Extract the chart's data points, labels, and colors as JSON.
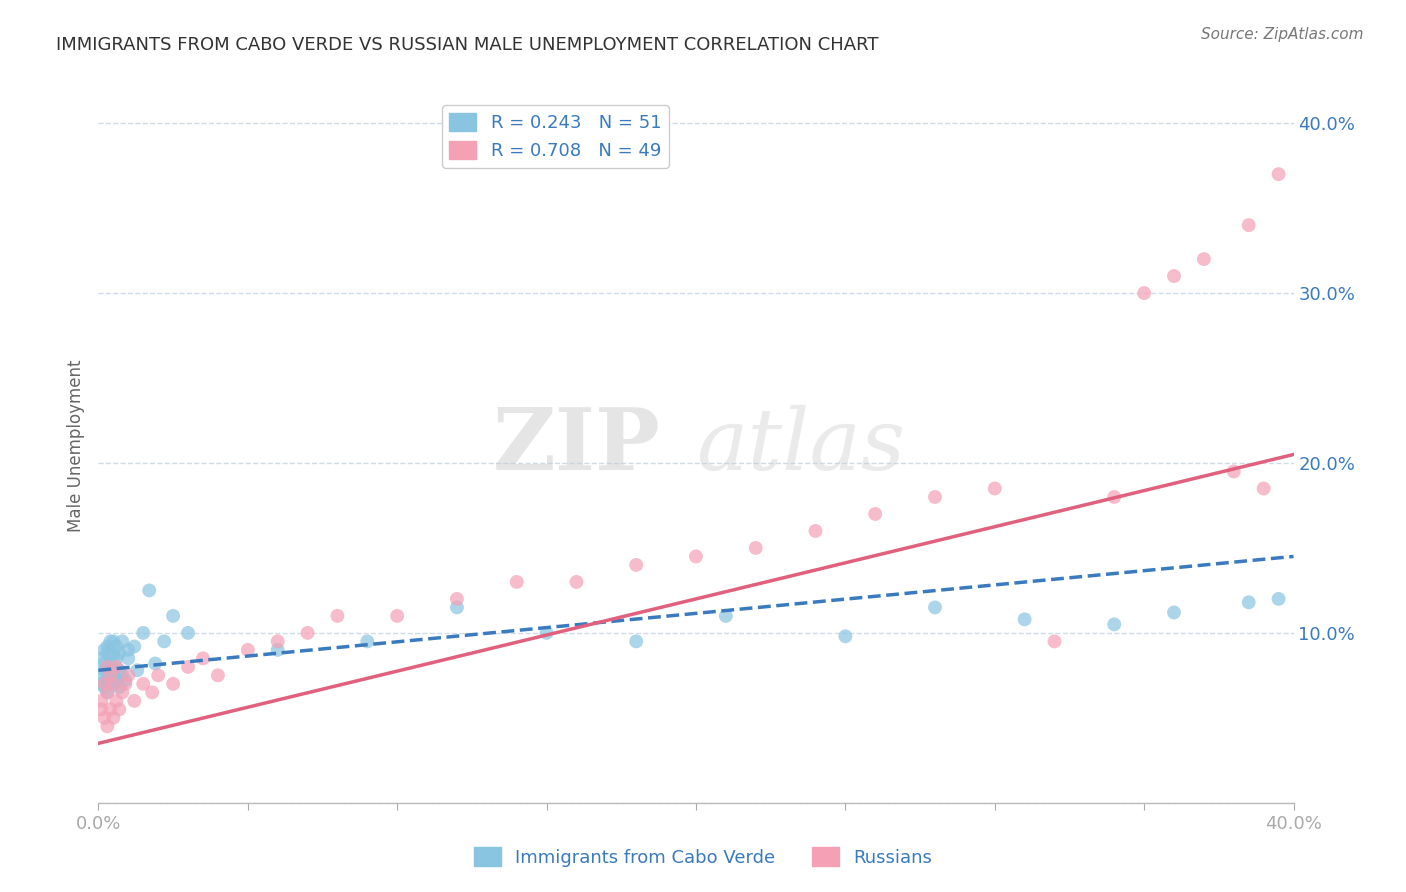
{
  "title": "IMMIGRANTS FROM CABO VERDE VS RUSSIAN MALE UNEMPLOYMENT CORRELATION CHART",
  "source": "Source: ZipAtlas.com",
  "ylabel": "Male Unemployment",
  "xlim": [
    0.0,
    0.4
  ],
  "ylim": [
    0.0,
    0.42
  ],
  "ytick_vals": [
    0.0,
    0.1,
    0.2,
    0.3,
    0.4
  ],
  "xtick_vals": [
    0.0,
    0.05,
    0.1,
    0.15,
    0.2,
    0.25,
    0.3,
    0.35,
    0.4
  ],
  "legend_R1": "R = 0.243",
  "legend_N1": "N = 51",
  "legend_R2": "R = 0.708",
  "legend_N2": "N = 49",
  "color_blue": "#89c4e1",
  "color_pink": "#f4a0b5",
  "color_line_blue": "#3a7abf",
  "color_line_pink": "#e0607e",
  "color_axis_label": "#3a7abf",
  "color_grid": "#c8d8e8",
  "background_color": "#ffffff",
  "watermark_zip": "ZIP",
  "watermark_atlas": "atlas",
  "cabo_verde_x": [
    0.001,
    0.001,
    0.001,
    0.002,
    0.002,
    0.002,
    0.002,
    0.003,
    0.003,
    0.003,
    0.003,
    0.003,
    0.004,
    0.004,
    0.004,
    0.005,
    0.005,
    0.005,
    0.005,
    0.006,
    0.006,
    0.006,
    0.007,
    0.007,
    0.007,
    0.008,
    0.008,
    0.009,
    0.01,
    0.01,
    0.012,
    0.013,
    0.015,
    0.017,
    0.019,
    0.022,
    0.025,
    0.03,
    0.06,
    0.09,
    0.12,
    0.15,
    0.18,
    0.21,
    0.25,
    0.28,
    0.31,
    0.34,
    0.36,
    0.385,
    0.395
  ],
  "cabo_verde_y": [
    0.085,
    0.07,
    0.075,
    0.082,
    0.068,
    0.078,
    0.09,
    0.072,
    0.08,
    0.092,
    0.065,
    0.088,
    0.075,
    0.095,
    0.082,
    0.07,
    0.088,
    0.078,
    0.095,
    0.072,
    0.085,
    0.092,
    0.068,
    0.078,
    0.088,
    0.075,
    0.095,
    0.072,
    0.085,
    0.09,
    0.092,
    0.078,
    0.1,
    0.125,
    0.082,
    0.095,
    0.11,
    0.1,
    0.09,
    0.095,
    0.115,
    0.1,
    0.095,
    0.11,
    0.098,
    0.115,
    0.108,
    0.105,
    0.112,
    0.118,
    0.12
  ],
  "russians_x": [
    0.001,
    0.001,
    0.002,
    0.002,
    0.003,
    0.003,
    0.003,
    0.004,
    0.004,
    0.005,
    0.005,
    0.006,
    0.006,
    0.007,
    0.008,
    0.009,
    0.01,
    0.012,
    0.015,
    0.018,
    0.02,
    0.025,
    0.03,
    0.035,
    0.04,
    0.05,
    0.06,
    0.07,
    0.08,
    0.1,
    0.12,
    0.14,
    0.16,
    0.18,
    0.2,
    0.22,
    0.24,
    0.26,
    0.28,
    0.3,
    0.32,
    0.34,
    0.35,
    0.36,
    0.37,
    0.38,
    0.385,
    0.39,
    0.395
  ],
  "russians_y": [
    0.06,
    0.055,
    0.05,
    0.07,
    0.045,
    0.065,
    0.08,
    0.055,
    0.075,
    0.05,
    0.07,
    0.06,
    0.08,
    0.055,
    0.065,
    0.07,
    0.075,
    0.06,
    0.07,
    0.065,
    0.075,
    0.07,
    0.08,
    0.085,
    0.075,
    0.09,
    0.095,
    0.1,
    0.11,
    0.11,
    0.12,
    0.13,
    0.13,
    0.14,
    0.145,
    0.15,
    0.16,
    0.17,
    0.18,
    0.185,
    0.095,
    0.18,
    0.3,
    0.31,
    0.32,
    0.195,
    0.34,
    0.185,
    0.37
  ],
  "cabo_trend_x0": 0.0,
  "cabo_trend_y0": 0.078,
  "cabo_trend_x1": 0.4,
  "cabo_trend_y1": 0.145,
  "rus_trend_x0": 0.0,
  "rus_trend_y0": 0.035,
  "rus_trend_x1": 0.4,
  "rus_trend_y1": 0.205
}
